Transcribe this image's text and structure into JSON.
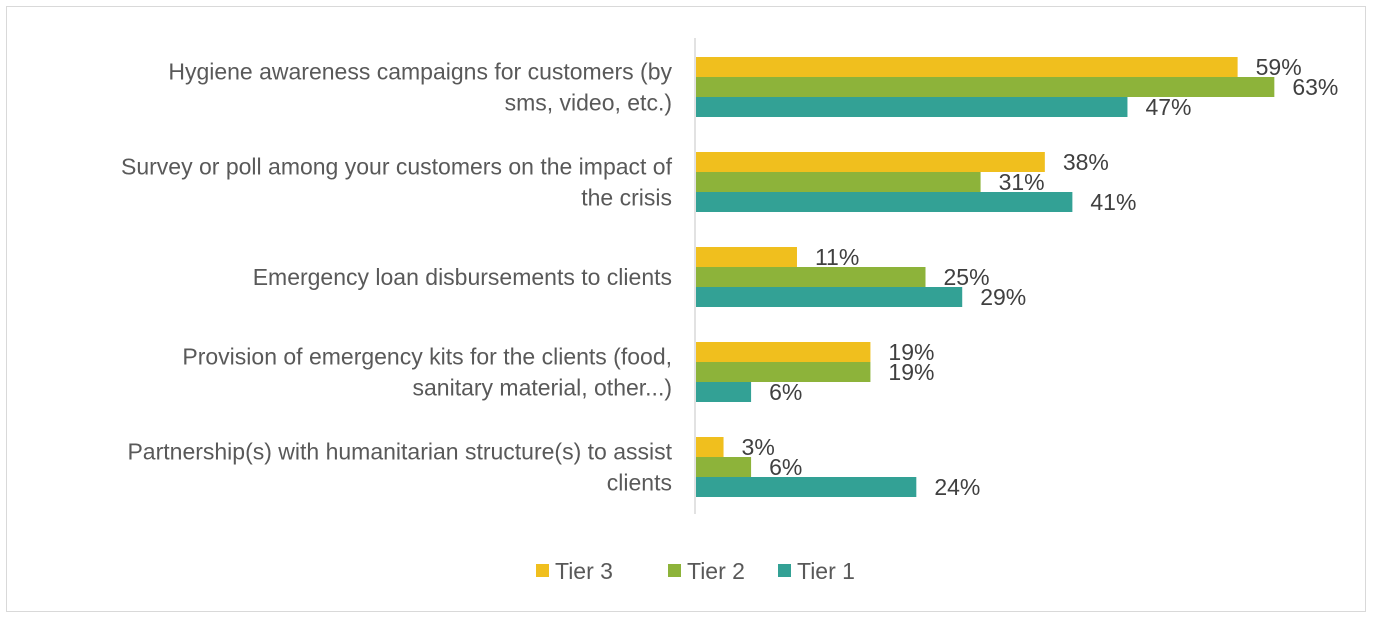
{
  "chart_data": {
    "type": "bar",
    "orientation": "horizontal",
    "categories": [
      [
        "Hygiene awareness campaigns for customers (by",
        "sms, video, etc.)"
      ],
      [
        "Survey or poll among your customers on the impact of",
        "the crisis"
      ],
      [
        "Emergency loan disbursements to clients"
      ],
      [
        "Provision of emergency kits for the clients (food,",
        "sanitary material, other...)"
      ],
      [
        "Partnership(s) with humanitarian structure(s) to assist",
        "clients"
      ]
    ],
    "series": [
      {
        "name": "Tier 3",
        "color": "#f0bf1e",
        "values": [
          59,
          38,
          11,
          19,
          3
        ],
        "labels": [
          "59%",
          "38%",
          "11%",
          "19%",
          "3%"
        ]
      },
      {
        "name": "Tier 2",
        "color": "#8db33a",
        "values": [
          63,
          31,
          25,
          19,
          6
        ],
        "labels": [
          "63%",
          "31%",
          "25%",
          "19%",
          "6%"
        ]
      },
      {
        "name": "Tier 1",
        "color": "#33a195",
        "values": [
          47,
          41,
          29,
          6,
          24
        ],
        "labels": [
          "47%",
          "41%",
          "29%",
          "6%",
          "24%"
        ]
      }
    ],
    "xlim": [
      0,
      100
    ],
    "grid": false,
    "legend_position": "bottom",
    "title": "",
    "xlabel": "",
    "ylabel": ""
  }
}
